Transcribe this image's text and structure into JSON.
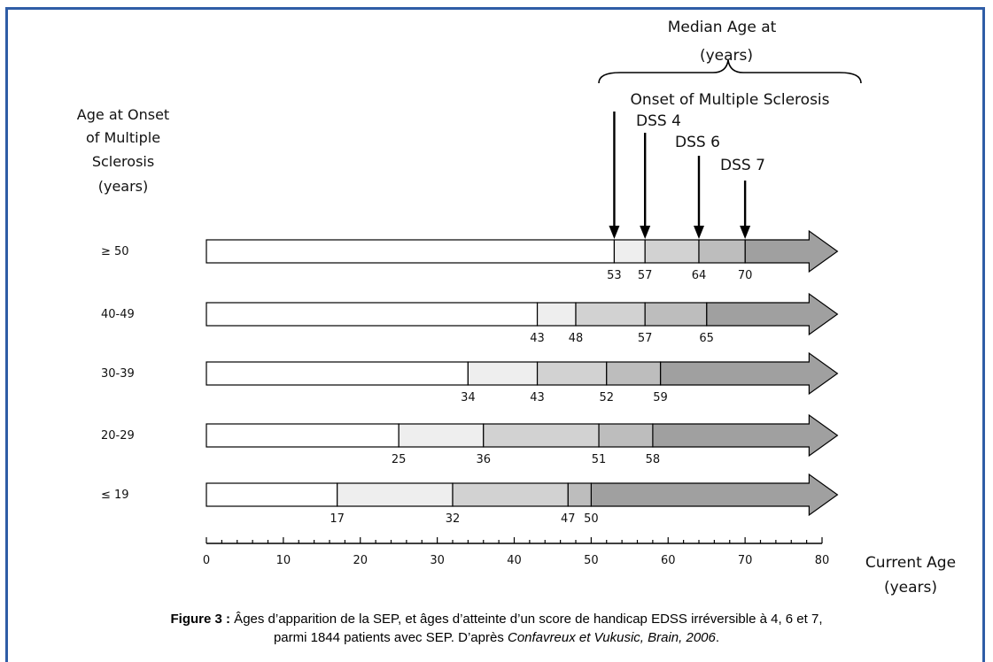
{
  "chart_data": {
    "type": "bar",
    "subtype": "stacked-horizontal-timeline",
    "header": {
      "median_line1": "Median Age at",
      "median_line2": "(years)",
      "onset_label": "Onset of Multiple Sclerosis",
      "dss4_label": "DSS 4",
      "dss6_label": "DSS 6",
      "dss7_label": "DSS 7"
    },
    "y_title_lines": [
      "Age at Onset",
      "of Multiple",
      "Sclerosis",
      "(years)"
    ],
    "x_title_lines": [
      "Current Age",
      "(years)"
    ],
    "xlim": [
      0,
      80
    ],
    "x_ticks": [
      0,
      10,
      20,
      30,
      40,
      50,
      60,
      70,
      80
    ],
    "arrow_end": 82,
    "colors": {
      "before_onset": "#ffffff",
      "onset_to_dss4": "#eeeeee",
      "dss4_to_dss6": "#d2d2d2",
      "dss6_to_dss7": "#bdbdbd",
      "after_dss7": "#a0a0a0",
      "outline": "#000000"
    },
    "groups": [
      {
        "label": "≥ 50",
        "onset": 53,
        "dss4": 57,
        "dss6": 64,
        "dss7": 70
      },
      {
        "label": "40-49",
        "onset": 43,
        "dss4": 48,
        "dss6": 57,
        "dss7": 65
      },
      {
        "label": "30-39",
        "onset": 34,
        "dss4": 43,
        "dss6": 52,
        "dss7": 59
      },
      {
        "label": "20-29",
        "onset": 25,
        "dss4": 36,
        "dss6": 51,
        "dss7": 58
      },
      {
        "label": "≤ 19",
        "onset": 17,
        "dss4": 32,
        "dss6": 47,
        "dss7": 50
      }
    ]
  },
  "caption": {
    "figure_label": "Figure 3 :",
    "line1_text": " Âges d’apparition de la SEP, et âges d’atteinte d’un score de handicap EDSS irréversible à 4, 6 et 7,",
    "line2_text": "parmi 1844 patients avec SEP. D’après ",
    "citation": "Confavreux et Vukusic, Brain, 2006",
    "end": "."
  }
}
